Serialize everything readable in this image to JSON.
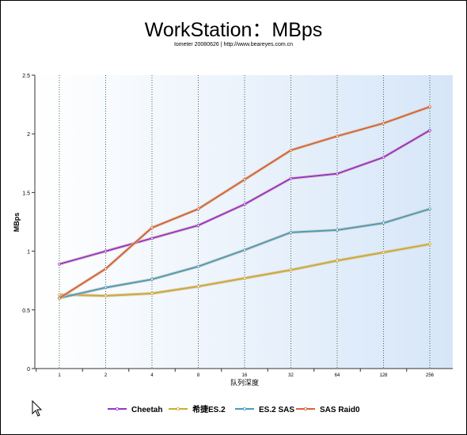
{
  "chart_data": {
    "type": "line",
    "title": "WorkStation：MBps",
    "subtitle": "Iometer 20080626 | http://www.beareyes.com.cn",
    "xlabel": "队列深度",
    "ylabel": "MBps",
    "categories": [
      "1",
      "2",
      "4",
      "8",
      "16",
      "32",
      "64",
      "128",
      "256"
    ],
    "ylim": [
      0,
      2.5
    ],
    "yticks": [
      "0",
      "0.5",
      "1",
      "1.5",
      "2",
      "2.5"
    ],
    "grid": "vertical dotted",
    "legend": "bottom",
    "series": [
      {
        "name": "Cheetah",
        "color": "#9933cc",
        "values": [
          0.89,
          1.0,
          1.11,
          1.22,
          1.4,
          1.62,
          1.66,
          1.8,
          2.03
        ]
      },
      {
        "name": "希捷ES.2",
        "color": "#ccaa33",
        "values": [
          0.63,
          0.62,
          0.64,
          0.7,
          0.77,
          0.84,
          0.92,
          0.99,
          1.06
        ]
      },
      {
        "name": "ES.2 SAS",
        "color": "#4a9bbe",
        "values": [
          0.6,
          0.69,
          0.76,
          0.87,
          1.01,
          1.16,
          1.18,
          1.24,
          1.36
        ]
      },
      {
        "name": "SAS Raid0",
        "color": "#d4643a",
        "values": [
          0.6,
          0.85,
          1.2,
          1.36,
          1.61,
          1.86,
          1.98,
          2.09,
          2.23
        ]
      }
    ]
  }
}
